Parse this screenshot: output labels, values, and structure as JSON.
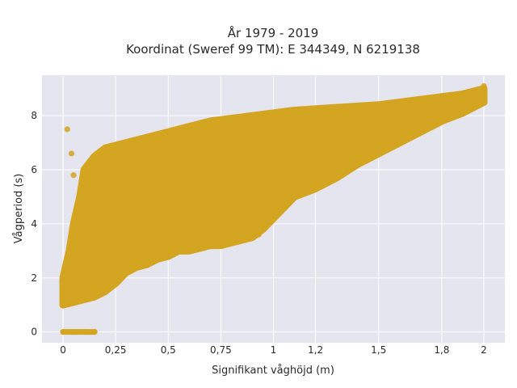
{
  "chart_data": {
    "type": "scatter",
    "title": "År 1979 - 2019",
    "subtitle": "Koordinat (Sweref 99 TM): E 344349, N 6219138",
    "xlabel": "Signifikant våghöjd (m)",
    "ylabel": "Vågperiod (s)",
    "xlim": [
      -0.1,
      2.1
    ],
    "ylim": [
      -0.4,
      9.5
    ],
    "xticks": [
      0,
      0.25,
      0.5,
      0.75,
      1,
      1.2,
      1.5,
      1.8,
      2
    ],
    "xtick_labels": [
      "0",
      "0,25",
      "0,5",
      "0,75",
      "1",
      "1,2",
      "1,5",
      "1,8",
      "2"
    ],
    "yticks": [
      0,
      2,
      4,
      6,
      8
    ],
    "ytick_labels": [
      "0",
      "2",
      "4",
      "6",
      "8"
    ],
    "grid": true,
    "background": "#e5e5ef",
    "marker_color": "#d4a521",
    "series": [
      {
        "points": [
          [
            0,
            0
          ],
          [
            0.05,
            0
          ],
          [
            0.1,
            0
          ],
          [
            0.15,
            0
          ],
          [
            0,
            1.0
          ],
          [
            0.05,
            1.1
          ],
          [
            0.1,
            1.2
          ],
          [
            0.15,
            1.3
          ],
          [
            0.2,
            1.5
          ],
          [
            0.25,
            1.8
          ],
          [
            0.3,
            2.2
          ],
          [
            0.35,
            2.4
          ],
          [
            0.4,
            2.5
          ],
          [
            0.45,
            2.7
          ],
          [
            0.5,
            2.8
          ],
          [
            0.55,
            3.0
          ],
          [
            0.6,
            3.0
          ],
          [
            0.65,
            3.1
          ],
          [
            0.7,
            3.2
          ],
          [
            0.75,
            3.2
          ],
          [
            0.8,
            3.3
          ],
          [
            0.9,
            3.5
          ],
          [
            0.95,
            3.8
          ],
          [
            1.0,
            4.2
          ],
          [
            1.05,
            4.6
          ],
          [
            1.1,
            5.0
          ],
          [
            1.2,
            5.3
          ],
          [
            1.3,
            5.7
          ],
          [
            1.4,
            6.2
          ],
          [
            1.5,
            6.6
          ],
          [
            1.6,
            7.0
          ],
          [
            1.7,
            7.4
          ],
          [
            1.8,
            7.8
          ],
          [
            1.9,
            8.1
          ],
          [
            2.0,
            8.5
          ],
          [
            0,
            2.0
          ],
          [
            0.03,
            3.0
          ],
          [
            0.05,
            4.0
          ],
          [
            0.08,
            5.0
          ],
          [
            0.1,
            6.0
          ],
          [
            0.15,
            6.5
          ],
          [
            0.2,
            6.8
          ],
          [
            0.3,
            7.0
          ],
          [
            0.5,
            7.4
          ],
          [
            0.7,
            7.8
          ],
          [
            0.9,
            8.0
          ],
          [
            1.1,
            8.2
          ],
          [
            1.3,
            8.3
          ],
          [
            1.5,
            8.4
          ],
          [
            1.7,
            8.6
          ],
          [
            1.9,
            8.8
          ],
          [
            2.0,
            9.0
          ],
          [
            0.02,
            7.5
          ],
          [
            0.04,
            6.6
          ],
          [
            0.05,
            5.8
          ],
          [
            0.9,
            3.7
          ],
          [
            0.93,
            3.6
          ],
          [
            1.15,
            8.1
          ],
          [
            1.2,
            8.1
          ],
          [
            1.4,
            8.3
          ],
          [
            1.6,
            8.5
          ],
          [
            1.95,
            8.9
          ],
          [
            2.0,
            9.1
          ]
        ]
      }
    ]
  }
}
